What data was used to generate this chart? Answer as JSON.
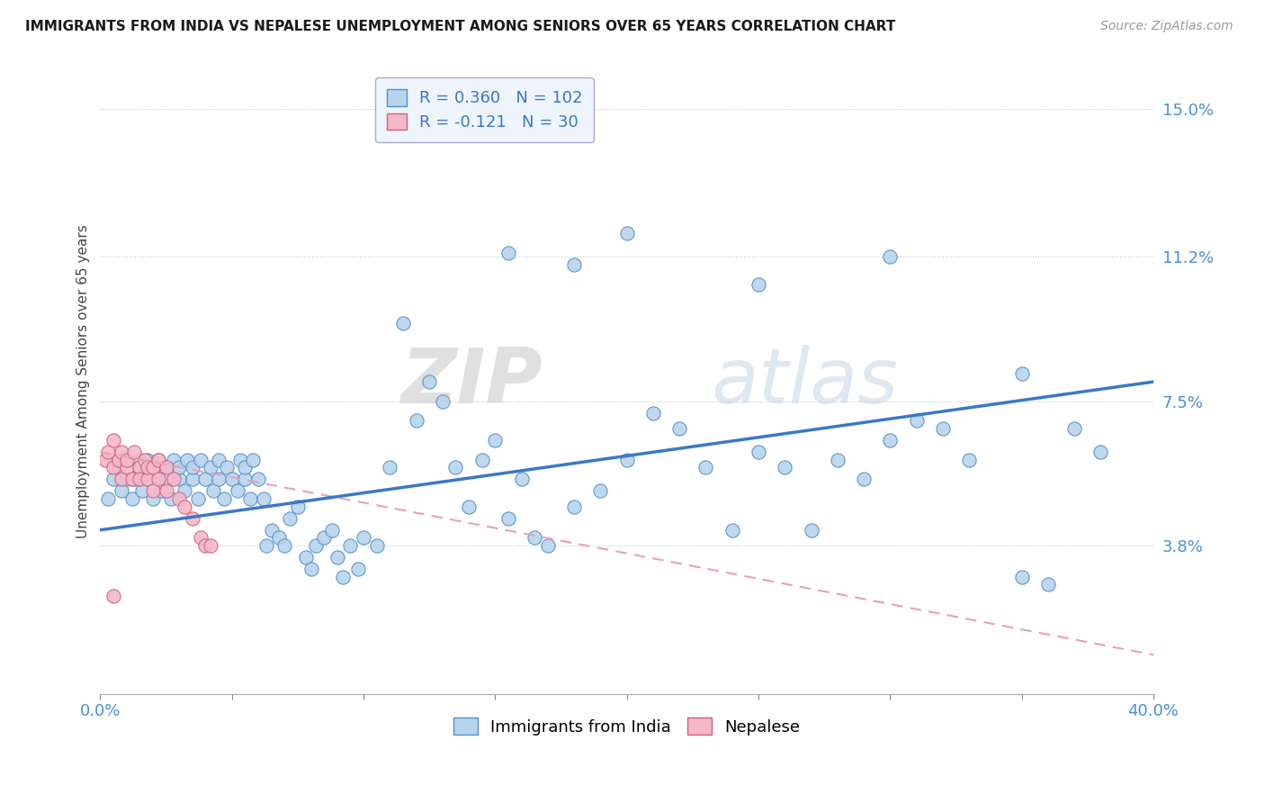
{
  "title": "IMMIGRANTS FROM INDIA VS NEPALESE UNEMPLOYMENT AMONG SENIORS OVER 65 YEARS CORRELATION CHART",
  "source": "Source: ZipAtlas.com",
  "ylabel": "Unemployment Among Seniors over 65 years",
  "xlim": [
    0.0,
    0.4
  ],
  "ylim": [
    0.0,
    0.16
  ],
  "yticks": [
    0.038,
    0.075,
    0.112,
    0.15
  ],
  "ytick_labels": [
    "3.8%",
    "7.5%",
    "11.2%",
    "15.0%"
  ],
  "xticks": [
    0.0,
    0.05,
    0.1,
    0.15,
    0.2,
    0.25,
    0.3,
    0.35,
    0.4
  ],
  "xtick_labels": [
    "0.0%",
    "",
    "",
    "",
    "",
    "",
    "",
    "",
    "40.0%"
  ],
  "india_fill_color": "#b8d4ed",
  "india_edge_color": "#5090c8",
  "nepalese_fill_color": "#f5b8c8",
  "nepalese_edge_color": "#d06080",
  "india_line_color": "#3a78c8",
  "nepalese_line_color": "#e8a0b8",
  "india_R": 0.36,
  "india_N": 102,
  "nepalese_R": -0.121,
  "nepalese_N": 30,
  "watermark": "ZIPatlas",
  "india_line_x0": 0.0,
  "india_line_y0": 0.042,
  "india_line_x1": 0.4,
  "india_line_y1": 0.08,
  "nepalese_line_x0": 0.0,
  "nepalese_line_y0": 0.062,
  "nepalese_line_x1": 0.4,
  "nepalese_line_y1": 0.01,
  "india_x": [
    0.003,
    0.005,
    0.007,
    0.008,
    0.01,
    0.01,
    0.012,
    0.013,
    0.015,
    0.015,
    0.016,
    0.018,
    0.018,
    0.02,
    0.02,
    0.022,
    0.022,
    0.023,
    0.025,
    0.025,
    0.027,
    0.028,
    0.03,
    0.03,
    0.032,
    0.033,
    0.035,
    0.035,
    0.037,
    0.038,
    0.04,
    0.042,
    0.043,
    0.045,
    0.045,
    0.047,
    0.048,
    0.05,
    0.052,
    0.053,
    0.055,
    0.055,
    0.057,
    0.058,
    0.06,
    0.062,
    0.063,
    0.065,
    0.068,
    0.07,
    0.072,
    0.075,
    0.078,
    0.08,
    0.082,
    0.085,
    0.088,
    0.09,
    0.092,
    0.095,
    0.098,
    0.1,
    0.105,
    0.11,
    0.115,
    0.12,
    0.125,
    0.13,
    0.135,
    0.14,
    0.145,
    0.15,
    0.155,
    0.16,
    0.165,
    0.17,
    0.18,
    0.19,
    0.2,
    0.21,
    0.22,
    0.23,
    0.24,
    0.25,
    0.26,
    0.27,
    0.28,
    0.29,
    0.3,
    0.31,
    0.32,
    0.33,
    0.35,
    0.36,
    0.37,
    0.38,
    0.2,
    0.25,
    0.3,
    0.35,
    0.155,
    0.18
  ],
  "india_y": [
    0.05,
    0.055,
    0.058,
    0.052,
    0.055,
    0.06,
    0.05,
    0.055,
    0.058,
    0.06,
    0.052,
    0.055,
    0.06,
    0.05,
    0.058,
    0.055,
    0.06,
    0.052,
    0.058,
    0.055,
    0.05,
    0.06,
    0.055,
    0.058,
    0.052,
    0.06,
    0.055,
    0.058,
    0.05,
    0.06,
    0.055,
    0.058,
    0.052,
    0.06,
    0.055,
    0.05,
    0.058,
    0.055,
    0.052,
    0.06,
    0.055,
    0.058,
    0.05,
    0.06,
    0.055,
    0.05,
    0.038,
    0.042,
    0.04,
    0.038,
    0.045,
    0.048,
    0.035,
    0.032,
    0.038,
    0.04,
    0.042,
    0.035,
    0.03,
    0.038,
    0.032,
    0.04,
    0.038,
    0.058,
    0.095,
    0.07,
    0.08,
    0.075,
    0.058,
    0.048,
    0.06,
    0.065,
    0.045,
    0.055,
    0.04,
    0.038,
    0.048,
    0.052,
    0.06,
    0.072,
    0.068,
    0.058,
    0.042,
    0.062,
    0.058,
    0.042,
    0.06,
    0.055,
    0.065,
    0.07,
    0.068,
    0.06,
    0.03,
    0.028,
    0.068,
    0.062,
    0.118,
    0.105,
    0.112,
    0.082,
    0.113,
    0.11
  ],
  "nepalese_x": [
    0.002,
    0.003,
    0.005,
    0.005,
    0.007,
    0.008,
    0.008,
    0.01,
    0.01,
    0.012,
    0.013,
    0.015,
    0.015,
    0.017,
    0.018,
    0.018,
    0.02,
    0.02,
    0.022,
    0.022,
    0.025,
    0.025,
    0.028,
    0.03,
    0.032,
    0.035,
    0.038,
    0.04,
    0.042,
    0.005
  ],
  "nepalese_y": [
    0.06,
    0.062,
    0.058,
    0.065,
    0.06,
    0.055,
    0.062,
    0.058,
    0.06,
    0.055,
    0.062,
    0.058,
    0.055,
    0.06,
    0.055,
    0.058,
    0.052,
    0.058,
    0.055,
    0.06,
    0.052,
    0.058,
    0.055,
    0.05,
    0.048,
    0.045,
    0.04,
    0.038,
    0.038,
    0.025
  ]
}
